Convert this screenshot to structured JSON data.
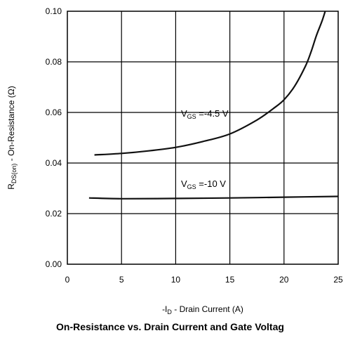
{
  "chart_data": {
    "type": "line",
    "title": "On-Resistance vs. Drain Current and Gate Voltag",
    "xlabel": {
      "prefix": "-I",
      "sub": "D",
      "suffix": " - Drain Current (A)"
    },
    "ylabel": {
      "prefix": "R",
      "sub": "DS(on)",
      "suffix": " - On-Resistance (Ω)"
    },
    "xlim": [
      0,
      25
    ],
    "ylim": [
      0,
      0.1
    ],
    "x_ticks": [
      0,
      5,
      10,
      15,
      20,
      25
    ],
    "x_tick_labels": [
      "0",
      "5",
      "10",
      "15",
      "20",
      "25"
    ],
    "y_ticks": [
      0,
      0.02,
      0.04,
      0.06,
      0.08,
      0.1
    ],
    "y_tick_labels": [
      "0.00",
      "0.02",
      "0.04",
      "0.06",
      "0.08",
      "0.10"
    ],
    "grid": true,
    "series": [
      {
        "label": {
          "prefix": "V",
          "sub": "GS",
          "suffix": " =-4.5 V"
        },
        "x": [
          2.5,
          5,
          7.5,
          10,
          12.5,
          15,
          17.5,
          19,
          20,
          21,
          22,
          22.5,
          23,
          23.5,
          23.8
        ],
        "y": [
          0.0432,
          0.0438,
          0.0448,
          0.0462,
          0.0485,
          0.0515,
          0.057,
          0.0615,
          0.065,
          0.0705,
          0.0785,
          0.084,
          0.0905,
          0.096,
          0.1
        ]
      },
      {
        "label": {
          "prefix": "V",
          "sub": "GS",
          "suffix": " =-10 V"
        },
        "x": [
          2,
          5,
          10,
          15,
          20,
          25
        ],
        "y": [
          0.0262,
          0.0259,
          0.026,
          0.0262,
          0.0265,
          0.0268
        ]
      }
    ]
  }
}
